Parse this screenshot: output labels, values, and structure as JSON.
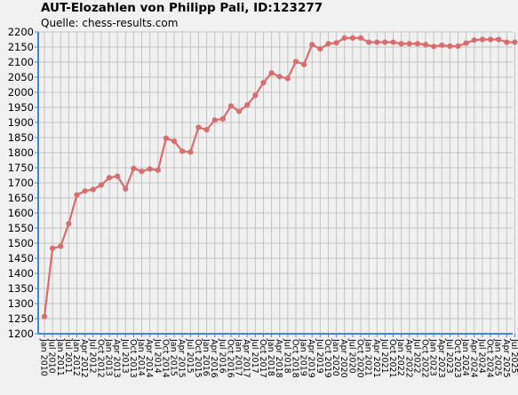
{
  "header": {
    "title": "AUT-Elozahlen von Philipp Pali, ID:123277",
    "subtitle": "Quelle: chess-results.com"
  },
  "colors": {
    "background": "#f1f1f1",
    "grid": "#c3c3c3",
    "axis": "#3e86dd",
    "line": "#d96c6c",
    "marker": "#d96c6c"
  },
  "chart_data": {
    "type": "line",
    "title": "AUT-Elozahlen von Philipp Pali, ID:123277",
    "subtitle": "Quelle: chess-results.com",
    "xlabel": "",
    "ylabel": "",
    "ylim": [
      1200,
      2200
    ],
    "yticks": [
      1200,
      1250,
      1300,
      1350,
      1400,
      1450,
      1500,
      1550,
      1600,
      1650,
      1700,
      1750,
      1800,
      1850,
      1900,
      1950,
      2000,
      2050,
      2100,
      2150,
      2200
    ],
    "grid": true,
    "legend": "none",
    "categories": [
      "Jan 2010",
      "Jul 2010",
      "Jan 2011",
      "Jul 2011",
      "Jan 2012",
      "Apr 2012",
      "Jul 2012",
      "Oct 2012",
      "Jan 2013",
      "Apr 2013",
      "Jul 2013",
      "Oct 2013",
      "Jan 2014",
      "Apr 2014",
      "Jul 2014",
      "Oct 2014",
      "Jan 2015",
      "Apr 2015",
      "Jul 2015",
      "Oct 2015",
      "Jan 2016",
      "Apr 2016",
      "Jul 2016",
      "Oct 2016",
      "Jan 2017",
      "Apr 2017",
      "Jul 2017",
      "Oct 2017",
      "Jan 2018",
      "Apr 2018",
      "Jul 2018",
      "Oct 2018",
      "Jan 2019",
      "Apr 2019",
      "Jul 2019",
      "Oct 2019",
      "Jan 2020",
      "Apr 2020",
      "Jul 2020",
      "Oct 2020",
      "Jan 2021",
      "Apr 2021",
      "Jul 2021",
      "Oct 2021",
      "Jan 2022",
      "Apr 2022",
      "Jul 2022",
      "Oct 2022",
      "Jan 2023",
      "Apr 2023",
      "Jul 2023",
      "Oct 2023",
      "Jan 2024",
      "Apr 2024",
      "Jul 2024",
      "Oct 2024",
      "Jan 2025",
      "Apr 2025",
      "Jul 2025"
    ],
    "series": [
      {
        "values": [
          1257,
          1483,
          1490,
          1565,
          1660,
          1673,
          1678,
          1693,
          1717,
          1722,
          1680,
          1748,
          1738,
          1746,
          1742,
          1848,
          1838,
          1805,
          1802,
          1884,
          1876,
          1908,
          1912,
          1955,
          1937,
          1958,
          1990,
          2032,
          2064,
          2052,
          2046,
          2102,
          2092,
          2158,
          2144,
          2161,
          2164,
          2180,
          2180,
          2180,
          2166,
          2166,
          2166,
          2166,
          2161,
          2161,
          2161,
          2158,
          2152,
          2156,
          2153,
          2153,
          2163,
          2173,
          2175,
          2175,
          2175,
          2166,
          2166
        ]
      }
    ]
  }
}
